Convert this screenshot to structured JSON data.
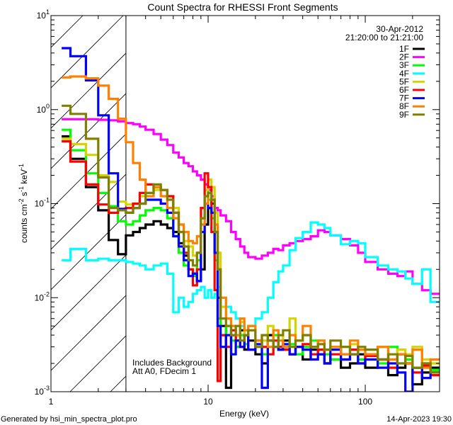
{
  "chart_data": {
    "type": "line",
    "step": true,
    "title": "Count Spectra for RHESSI Front Segments",
    "xlabel": "Energy (keV)",
    "ylabel": {
      "base": "counts cm",
      "e1": "-2",
      "mid": " s",
      "e2": "-1",
      "mid2": " keV",
      "e3": "-1"
    },
    "xscale": "log",
    "yscale": "log",
    "xlim": [
      1,
      297
    ],
    "ylim": [
      0.001,
      10
    ],
    "x_ticks": [
      {
        "value": 1,
        "label": "1"
      },
      {
        "value": 10,
        "label": "10"
      },
      {
        "value": 100,
        "label": "100"
      }
    ],
    "y_ticks": [
      {
        "value": 10,
        "base": "10",
        "exp": "1"
      },
      {
        "value": 1,
        "base": "10",
        "exp": "0"
      },
      {
        "value": 0.1,
        "base": "10",
        "exp": "-1"
      },
      {
        "value": 0.01,
        "base": "10",
        "exp": "-2"
      },
      {
        "value": 0.001,
        "base": "10",
        "exp": "-3"
      }
    ],
    "legend_placement": "top-right",
    "date": "30-Apr-2012",
    "time_range": "21:20:00 to 21:21:00",
    "background_region_max_keV": 3,
    "annotations": [
      "Includes Background",
      "Att A0, FDecim 1"
    ],
    "energy_edges": [
      1.17,
      1.33,
      1.67,
      2,
      2.33,
      2.67,
      3,
      3.33,
      3.67,
      4,
      4.5,
      5,
      5.5,
      6,
      6.5,
      7,
      7.5,
      8,
      8.5,
      9,
      9.5,
      10,
      10.5,
      11,
      11.5,
      12,
      13,
      14,
      15,
      16,
      17,
      18,
      20,
      22,
      24,
      26,
      28,
      30,
      33,
      36,
      40,
      45,
      50,
      55,
      60,
      70,
      80,
      90,
      100,
      120,
      140,
      160,
      180,
      200,
      230,
      260,
      297
    ],
    "series": [
      {
        "name": "1F",
        "color": "#000000",
        "values": [
          0.52,
          0.3,
          0.15,
          0.085,
          0.041,
          0.029,
          0.046,
          0.05,
          0.055,
          0.06,
          0.065,
          0.06,
          0.055,
          0.05,
          0.038,
          0.028,
          0.02,
          0.018,
          0.015,
          0.02,
          0.06,
          0.09,
          0.1,
          0.05,
          0.01,
          0.005,
          0.0011,
          0.004,
          0.003,
          0.0045,
          0.0028,
          0.0035,
          0.0025,
          0.002,
          0.004,
          0.003,
          0.0028,
          0.0035,
          0.0025,
          0.003,
          0.0022,
          0.0028,
          0.0025,
          0.002,
          0.0022,
          0.0018,
          0.002,
          0.0025,
          0.0018,
          0.0022,
          0.0015,
          0.0018,
          0.002,
          0.0012,
          0.0016,
          0.0018
        ]
      },
      {
        "name": "2F",
        "color": "#ff00ff",
        "values": [
          0.79,
          0.79,
          0.79,
          0.78,
          0.77,
          0.75,
          0.72,
          0.7,
          0.66,
          0.61,
          0.55,
          0.48,
          0.42,
          0.35,
          0.31,
          0.27,
          0.25,
          0.22,
          0.2,
          0.18,
          0.16,
          0.14,
          0.12,
          0.09,
          0.085,
          0.075,
          0.065,
          0.05,
          0.042,
          0.035,
          0.03,
          0.027,
          0.026,
          0.028,
          0.03,
          0.033,
          0.032,
          0.036,
          0.038,
          0.04,
          0.042,
          0.045,
          0.052,
          0.05,
          0.046,
          0.042,
          0.036,
          0.03,
          0.024,
          0.02,
          0.018,
          0.017,
          0.019,
          0.014,
          0.012,
          0.011
        ]
      },
      {
        "name": "3F",
        "color": "#00ff00",
        "values": [
          0.61,
          0.37,
          0.21,
          0.13,
          0.094,
          0.065,
          0.06,
          0.065,
          0.075,
          0.085,
          0.09,
          0.085,
          0.07,
          0.045,
          0.03,
          0.022,
          0.02,
          0.017,
          0.025,
          0.07,
          0.14,
          0.11,
          0.07,
          0.025,
          0.006,
          0.004,
          0.005,
          0.0035,
          0.003,
          0.004,
          0.0032,
          0.005,
          0.003,
          0.0025,
          0.0035,
          0.004,
          0.003,
          0.0028,
          0.0032,
          0.0025,
          0.003,
          0.0035,
          0.0028,
          0.0025,
          0.0022,
          0.003,
          0.0028,
          0.0022,
          0.0025,
          0.002,
          0.003,
          0.0025,
          0.0022,
          0.0018,
          0.002,
          0.0017
        ]
      },
      {
        "name": "4F",
        "color": "#00ffff",
        "values": [
          0.025,
          0.033,
          0.025,
          0.026,
          0.025,
          0.025,
          0.024,
          0.023,
          0.022,
          0.02,
          0.022,
          0.023,
          0.018,
          0.007,
          0.01,
          0.008,
          0.009,
          0.011,
          0.012,
          0.013,
          0.01,
          0.012,
          0.01,
          0.011,
          0.013,
          0.01,
          0.008,
          0.007,
          0.006,
          0.005,
          0.004,
          0.005,
          0.006,
          0.007,
          0.01,
          0.0146,
          0.019,
          0.022,
          0.032,
          0.043,
          0.05,
          0.063,
          0.06,
          0.055,
          0.046,
          0.037,
          0.04,
          0.038,
          0.027,
          0.022,
          0.02,
          0.019,
          0.016,
          0.014,
          0.02,
          0.009
        ]
      },
      {
        "name": "5F",
        "color": "#d4d400",
        "values": [
          0.49,
          0.43,
          0.33,
          0.2,
          0.17,
          0.105,
          0.098,
          0.1,
          0.12,
          0.13,
          0.14,
          0.14,
          0.12,
          0.09,
          0.06,
          0.04,
          0.035,
          0.028,
          0.03,
          0.07,
          0.14,
          0.18,
          0.15,
          0.08,
          0.03,
          0.008,
          0.006,
          0.005,
          0.004,
          0.0055,
          0.004,
          0.0045,
          0.003,
          0.0035,
          0.005,
          0.003,
          0.004,
          0.0028,
          0.006,
          0.0035,
          0.004,
          0.003,
          0.0035,
          0.0028,
          0.003,
          0.0025,
          0.0032,
          0.0028,
          0.0025,
          0.003,
          0.0022,
          0.0028,
          0.0025,
          0.003,
          0.0022,
          0.002
        ]
      },
      {
        "name": "6F",
        "color": "#ff0000",
        "values": [
          0.46,
          0.28,
          0.16,
          0.098,
          0.08,
          0.085,
          0.09,
          0.1,
          0.13,
          0.16,
          0.15,
          0.14,
          0.12,
          0.08,
          0.05,
          0.03,
          0.02,
          0.0135,
          0.02,
          0.09,
          0.21,
          0.15,
          0.05,
          0.012,
          0.0013,
          0.004,
          0.003,
          0.0045,
          0.0035,
          0.003,
          0.004,
          0.0028,
          0.0035,
          0.003,
          0.0025,
          0.0035,
          0.003,
          0.0028,
          0.0025,
          0.003,
          0.0032,
          0.0025,
          0.0028,
          0.002,
          0.0025,
          0.0022,
          0.0028,
          0.002,
          0.0024,
          0.0022,
          0.0018,
          0.0025,
          0.002,
          0.0016,
          0.0019,
          0.0015
        ]
      },
      {
        "name": "7F",
        "color": "#0000ff",
        "values": [
          4.5,
          3.7,
          2.05,
          0.87,
          0.21,
          0.088,
          0.08,
          0.09,
          0.1,
          0.11,
          0.11,
          0.1,
          0.08,
          0.045,
          0.035,
          0.025,
          0.017,
          0.018,
          0.015,
          0.05,
          0.1,
          0.09,
          0.08,
          0.03,
          0.005,
          0.003,
          0.004,
          0.0025,
          0.0035,
          0.003,
          0.004,
          0.0028,
          0.0032,
          0.0011,
          0.0035,
          0.003,
          0.0028,
          0.0032,
          0.0025,
          0.003,
          0.0028,
          0.0022,
          0.0025,
          0.002,
          0.0028,
          0.0022,
          0.0025,
          0.002,
          0.0022,
          0.0018,
          0.002,
          0.0016,
          0.001,
          0.0018,
          0.0014,
          0.0016
        ]
      },
      {
        "name": "8F",
        "color": "#ff8000",
        "values": [
          2.2,
          2.25,
          2.15,
          1.8,
          1.3,
          0.8,
          0.45,
          0.27,
          0.18,
          0.12,
          0.15,
          0.12,
          0.09,
          0.07,
          0.06,
          0.05,
          0.04,
          0.038,
          0.045,
          0.06,
          0.1,
          0.13,
          0.11,
          0.06,
          0.02,
          0.01,
          0.006,
          0.005,
          0.004,
          0.006,
          0.0045,
          0.005,
          0.0035,
          0.004,
          0.003,
          0.0045,
          0.0035,
          0.003,
          0.004,
          0.0035,
          0.005,
          0.003,
          0.0035,
          0.0028,
          0.003,
          0.0025,
          0.0035,
          0.0028,
          0.0025,
          0.003,
          0.0022,
          0.0025,
          0.002,
          0.0028,
          0.0018,
          0.0022
        ]
      },
      {
        "name": "9F",
        "color": "#808000",
        "values": [
          1.1,
          0.9,
          0.49,
          0.19,
          0.09,
          0.085,
          0.08,
          0.09,
          0.1,
          0.13,
          0.16,
          0.14,
          0.11,
          0.08,
          0.05,
          0.035,
          0.025,
          0.022,
          0.03,
          0.07,
          0.12,
          0.13,
          0.11,
          0.05,
          0.02,
          0.006,
          0.005,
          0.004,
          0.005,
          0.0035,
          0.004,
          0.0045,
          0.003,
          0.004,
          0.0035,
          0.003,
          0.004,
          0.0045,
          0.003,
          0.0035,
          0.004,
          0.003,
          0.0032,
          0.0028,
          0.0035,
          0.003,
          0.0025,
          0.003,
          0.0028,
          0.0022,
          0.0025,
          0.002,
          0.0024,
          0.0018,
          0.002,
          0.0016
        ]
      }
    ]
  },
  "footer": {
    "generated_by": "Generated by hsi_min_spectra_plot.pro",
    "timestamp": "14-Apr-2023 19:30"
  }
}
